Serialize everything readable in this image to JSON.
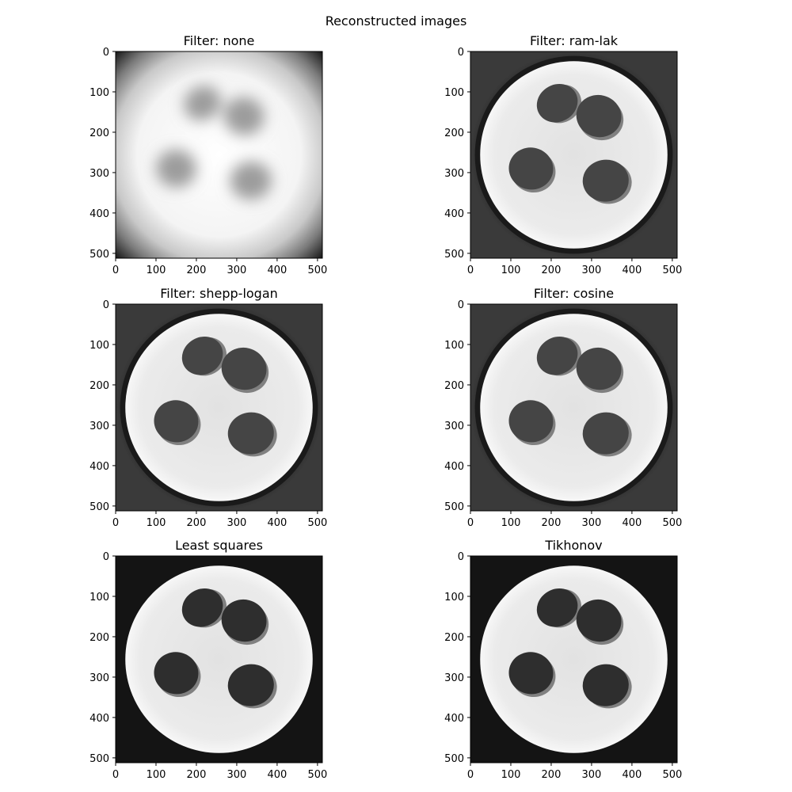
{
  "figure": {
    "title": "Reconstructed images"
  },
  "chart_data": [
    {
      "type": "heatmap",
      "title": "Filter: none",
      "variant": "blur",
      "xlim": [
        0,
        512
      ],
      "ylim": [
        512,
        0
      ],
      "xticks": [
        0,
        100,
        200,
        300,
        400,
        500
      ],
      "yticks": [
        0,
        100,
        200,
        300,
        400,
        500
      ],
      "colormap": "gray",
      "grid": false
    },
    {
      "type": "heatmap",
      "title": "Filter: ram-lak",
      "variant": "fbp",
      "xlim": [
        0,
        512
      ],
      "ylim": [
        512,
        0
      ],
      "xticks": [
        0,
        100,
        200,
        300,
        400,
        500
      ],
      "yticks": [
        0,
        100,
        200,
        300,
        400,
        500
      ],
      "colormap": "gray",
      "grid": false
    },
    {
      "type": "heatmap",
      "title": "Filter: shepp-logan",
      "variant": "fbp",
      "xlim": [
        0,
        512
      ],
      "ylim": [
        512,
        0
      ],
      "xticks": [
        0,
        100,
        200,
        300,
        400,
        500
      ],
      "yticks": [
        0,
        100,
        200,
        300,
        400,
        500
      ],
      "colormap": "gray",
      "grid": false
    },
    {
      "type": "heatmap",
      "title": "Filter: cosine",
      "variant": "fbp",
      "xlim": [
        0,
        512
      ],
      "ylim": [
        512,
        0
      ],
      "xticks": [
        0,
        100,
        200,
        300,
        400,
        500
      ],
      "yticks": [
        0,
        100,
        200,
        300,
        400,
        500
      ],
      "colormap": "gray",
      "grid": false
    },
    {
      "type": "heatmap",
      "title": "Least squares",
      "variant": "iterative",
      "xlim": [
        0,
        512
      ],
      "ylim": [
        512,
        0
      ],
      "xticks": [
        0,
        100,
        200,
        300,
        400,
        500
      ],
      "yticks": [
        0,
        100,
        200,
        300,
        400,
        500
      ],
      "colormap": "gray",
      "grid": false
    },
    {
      "type": "heatmap",
      "title": "Tikhonov",
      "variant": "iterative",
      "xlim": [
        0,
        512
      ],
      "ylim": [
        512,
        0
      ],
      "xticks": [
        0,
        100,
        200,
        300,
        400,
        500
      ],
      "yticks": [
        0,
        100,
        200,
        300,
        400,
        500
      ],
      "colormap": "gray",
      "grid": false
    }
  ]
}
